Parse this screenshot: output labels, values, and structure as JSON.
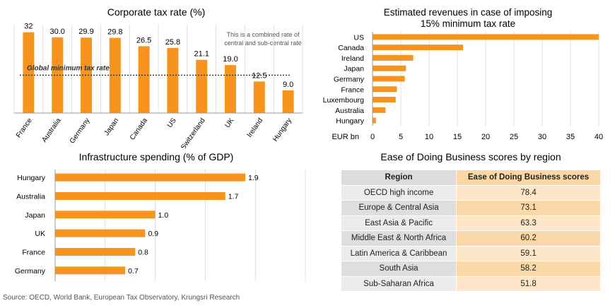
{
  "colors": {
    "bar": "#f7941d",
    "axis": "#999999",
    "grid": "#cccccc"
  },
  "source": "Source: OECD, World Bank, European Tax Observatory, Krungsri Research",
  "chart_data": [
    {
      "type": "bar",
      "title": "Corporate tax rate (%)",
      "categories": [
        "France",
        "Australia",
        "Germany",
        "Japan",
        "Canada",
        "US",
        "Switzerland",
        "UK",
        "Ireland",
        "Hungary"
      ],
      "values": [
        32,
        30.0,
        29.9,
        29.8,
        26.5,
        25.8,
        21.1,
        19.0,
        12.5,
        9.0
      ],
      "value_labels": [
        "32",
        "30.0",
        "29.9",
        "29.8",
        "26.5",
        "25.8",
        "21.1",
        "19.0",
        "12.5",
        "9.0"
      ],
      "ylim": [
        0,
        35
      ],
      "reference_line": {
        "value": 15,
        "label": "Global minimum tax rate"
      },
      "note_lines": [
        "This is a combined rate of",
        "central and sub-central rate"
      ]
    },
    {
      "type": "bar",
      "orientation": "horizontal",
      "title_lines": [
        "Estimated revenues in case of  imposing",
        "15% minimum  tax rate"
      ],
      "categories": [
        "US",
        "Canada",
        "Ireland",
        "Japan",
        "Germany",
        "France",
        "Luxembourg",
        "Australia",
        "Hungary"
      ],
      "values": [
        40,
        16,
        7.2,
        5.9,
        5.7,
        4.3,
        4.1,
        2.3,
        0.6
      ],
      "xlabel": "EUR bn",
      "xlim": [
        0,
        40
      ],
      "xticks": [
        0,
        5,
        10,
        15,
        20,
        25,
        30,
        35,
        40
      ]
    },
    {
      "type": "bar",
      "orientation": "horizontal",
      "title": "Infrastructure spending (% of GDP)",
      "categories": [
        "Hungary",
        "Australia",
        "Japan",
        "UK",
        "France",
        "Germany"
      ],
      "values": [
        1.9,
        1.7,
        1.0,
        0.9,
        0.8,
        0.7
      ],
      "value_labels": [
        "1.9",
        "1.7",
        "1.0",
        "0.9",
        "0.8",
        "0.7"
      ],
      "xlim": [
        0,
        2.5
      ]
    },
    {
      "type": "table",
      "title": "Ease of Doing Business scores by region",
      "columns": [
        "Region",
        "Ease of Doing Business scores"
      ],
      "rows": [
        [
          "OECD high income",
          "78.4"
        ],
        [
          "Europe & Central Asia",
          "73.1"
        ],
        [
          "East Asia & Pacific",
          "63.3"
        ],
        [
          "Middle East & North Africa",
          "60.2"
        ],
        [
          "Latin America & Caribbean",
          "59.1"
        ],
        [
          "South Asia",
          "58.2"
        ],
        [
          "Sub-Saharan Africa",
          "51.8"
        ]
      ]
    }
  ]
}
